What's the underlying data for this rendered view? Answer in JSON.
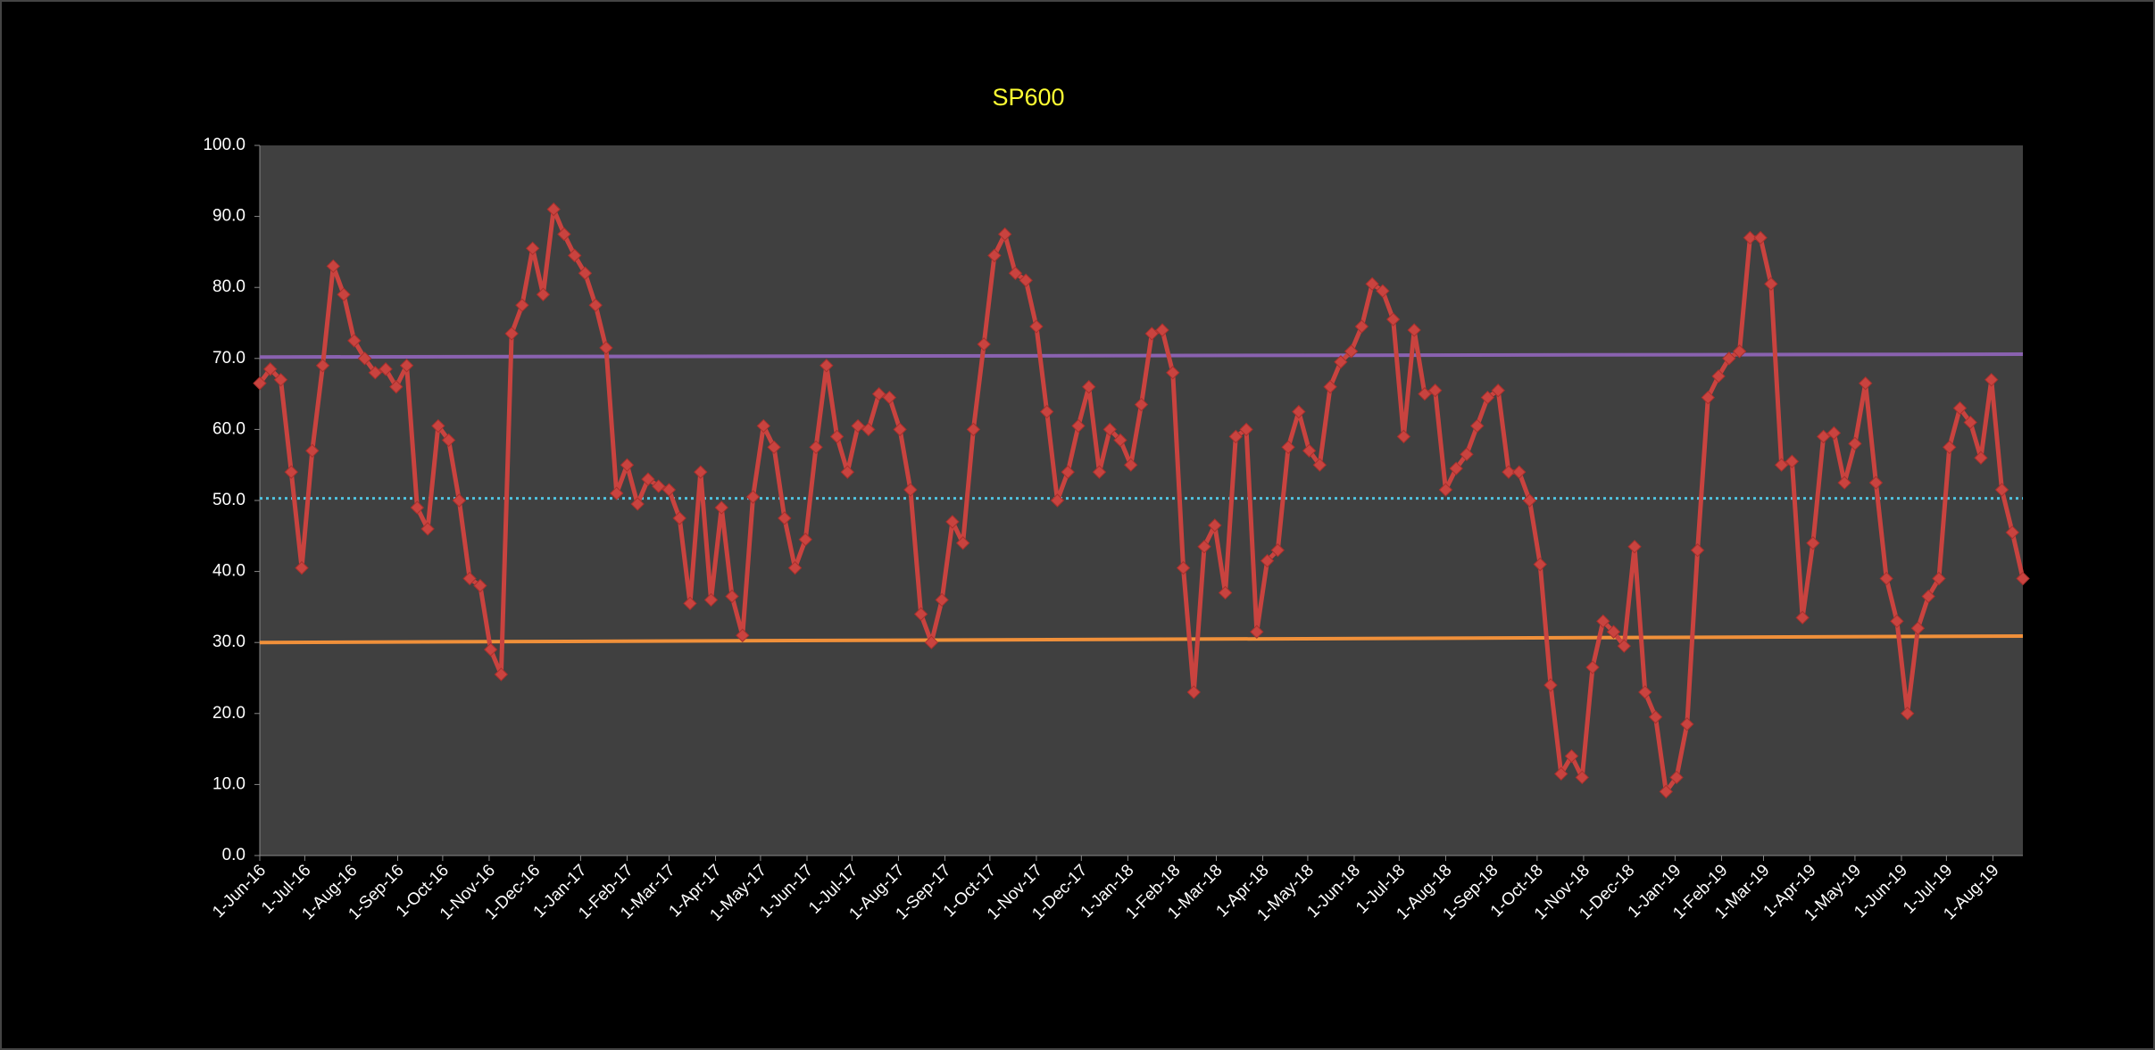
{
  "chart_data": {
    "type": "line",
    "title": "SP600",
    "x": [
      "2016-06-01",
      "2016-06-08",
      "2016-06-15",
      "2016-06-22",
      "2016-06-29",
      "2016-07-06",
      "2016-07-13",
      "2016-07-20",
      "2016-07-27",
      "2016-08-03",
      "2016-08-10",
      "2016-08-17",
      "2016-08-24",
      "2016-08-31",
      "2016-09-07",
      "2016-09-14",
      "2016-09-21",
      "2016-09-28",
      "2016-10-05",
      "2016-10-12",
      "2016-10-19",
      "2016-10-26",
      "2016-11-02",
      "2016-11-09",
      "2016-11-16",
      "2016-11-23",
      "2016-11-30",
      "2016-12-07",
      "2016-12-14",
      "2016-12-21",
      "2016-12-28",
      "2017-01-04",
      "2017-01-11",
      "2017-01-18",
      "2017-01-25",
      "2017-02-01",
      "2017-02-08",
      "2017-02-15",
      "2017-02-22",
      "2017-03-01",
      "2017-03-08",
      "2017-03-15",
      "2017-03-22",
      "2017-03-29",
      "2017-04-05",
      "2017-04-12",
      "2017-04-19",
      "2017-04-26",
      "2017-05-03",
      "2017-05-10",
      "2017-05-17",
      "2017-05-24",
      "2017-05-31",
      "2017-06-07",
      "2017-06-14",
      "2017-06-21",
      "2017-06-28",
      "2017-07-05",
      "2017-07-12",
      "2017-07-19",
      "2017-07-26",
      "2017-08-02",
      "2017-08-09",
      "2017-08-16",
      "2017-08-23",
      "2017-08-30",
      "2017-09-06",
      "2017-09-13",
      "2017-09-20",
      "2017-09-27",
      "2017-10-04",
      "2017-10-11",
      "2017-10-18",
      "2017-10-25",
      "2017-11-01",
      "2017-11-08",
      "2017-11-15",
      "2017-11-22",
      "2017-11-29",
      "2017-12-06",
      "2017-12-13",
      "2017-12-20",
      "2017-12-27",
      "2018-01-03",
      "2018-01-10",
      "2018-01-17",
      "2018-01-24",
      "2018-01-31",
      "2018-02-07",
      "2018-02-14",
      "2018-02-21",
      "2018-02-28",
      "2018-03-07",
      "2018-03-14",
      "2018-03-21",
      "2018-03-28",
      "2018-04-04",
      "2018-04-11",
      "2018-04-18",
      "2018-04-25",
      "2018-05-02",
      "2018-05-09",
      "2018-05-16",
      "2018-05-23",
      "2018-05-30",
      "2018-06-06",
      "2018-06-13",
      "2018-06-20",
      "2018-06-27",
      "2018-07-04",
      "2018-07-11",
      "2018-07-18",
      "2018-07-25",
      "2018-08-01",
      "2018-08-08",
      "2018-08-15",
      "2018-08-22",
      "2018-08-29",
      "2018-09-05",
      "2018-09-12",
      "2018-09-19",
      "2018-09-26",
      "2018-10-03",
      "2018-10-10",
      "2018-10-17",
      "2018-10-24",
      "2018-10-31",
      "2018-11-07",
      "2018-11-14",
      "2018-11-21",
      "2018-11-28",
      "2018-12-05",
      "2018-12-12",
      "2018-12-19",
      "2018-12-26",
      "2019-01-02",
      "2019-01-09",
      "2019-01-16",
      "2019-01-23",
      "2019-01-30",
      "2019-02-06",
      "2019-02-13",
      "2019-02-20",
      "2019-02-27",
      "2019-03-06",
      "2019-03-13",
      "2019-03-20",
      "2019-03-27",
      "2019-04-03",
      "2019-04-10",
      "2019-04-17",
      "2019-04-24",
      "2019-05-01",
      "2019-05-08",
      "2019-05-15",
      "2019-05-22",
      "2019-05-29",
      "2019-06-05",
      "2019-06-12",
      "2019-06-19",
      "2019-06-26",
      "2019-07-03",
      "2019-07-10",
      "2019-07-17",
      "2019-07-24",
      "2019-07-31",
      "2019-08-07",
      "2019-08-14",
      "2019-08-21"
    ],
    "series": [
      {
        "color": "#c9433f",
        "values": [
          66.5,
          68.5,
          67,
          54,
          40.5,
          57,
          69,
          83,
          79,
          72.5,
          70,
          68,
          68.5,
          66,
          69,
          49,
          46,
          60.5,
          58.5,
          50,
          39,
          38,
          29,
          25.5,
          73.5,
          77.5,
          85.5,
          79,
          91,
          87.5,
          84.5,
          82,
          77.5,
          71.5,
          51,
          55,
          49.5,
          53,
          52,
          51.5,
          47.5,
          35.5,
          54,
          36,
          49,
          36.5,
          31,
          50.5,
          60.5,
          57.5,
          47.5,
          40.5,
          44.5,
          57.5,
          69,
          59,
          54,
          60.5,
          60,
          65,
          64.5,
          60,
          51.5,
          34,
          30,
          36,
          47,
          44,
          60,
          72,
          84.5,
          87.5,
          82,
          81,
          74.5,
          62.5,
          50,
          54,
          60.5,
          66,
          54,
          60,
          58.5,
          55,
          63.5,
          73.5,
          74,
          68,
          40.5,
          23,
          43.5,
          46.5,
          37,
          59,
          60,
          31.5,
          41.5,
          43,
          57.5,
          62.5,
          57,
          55,
          66,
          69.5,
          71,
          74.5,
          80.5,
          79.5,
          75.5,
          59,
          74,
          65,
          65.5,
          51.5,
          54.5,
          56.5,
          60.5,
          64.5,
          65.5,
          54,
          54,
          50,
          41,
          24,
          11.5,
          14,
          11,
          26.5,
          33,
          31.5,
          29.5,
          43.5,
          23,
          19.5,
          9,
          11,
          18.5,
          43,
          64.5,
          67.5,
          70,
          71,
          87,
          87,
          80.5,
          55,
          55.5,
          33.5,
          44,
          59,
          59.5,
          52.5,
          58,
          66.5,
          52.5,
          39,
          33,
          20,
          32,
          36.5,
          39,
          57.5,
          63,
          61,
          56,
          67,
          51.5,
          45.5,
          39
        ]
      }
    ],
    "reference_lines": [
      {
        "color": "#8a62b0",
        "values": [
          70.2,
          70.6
        ]
      },
      {
        "color": "#4fc3e0",
        "style": "dotted",
        "values": [
          50.3,
          50.3
        ]
      },
      {
        "color": "#f0903a",
        "values": [
          30.0,
          30.9
        ]
      }
    ],
    "xlim": [
      "2016-06-01",
      "2019-08-21"
    ],
    "xticks": [
      {
        "value": "2016-06-01",
        "label": "1-Jun-16"
      },
      {
        "value": "2016-07-01",
        "label": "1-Jul-16"
      },
      {
        "value": "2016-08-01",
        "label": "1-Aug-16"
      },
      {
        "value": "2016-09-01",
        "label": "1-Sep-16"
      },
      {
        "value": "2016-10-01",
        "label": "1-Oct-16"
      },
      {
        "value": "2016-11-01",
        "label": "1-Nov-16"
      },
      {
        "value": "2016-12-01",
        "label": "1-Dec-16"
      },
      {
        "value": "2017-01-01",
        "label": "1-Jan-17"
      },
      {
        "value": "2017-02-01",
        "label": "1-Feb-17"
      },
      {
        "value": "2017-03-01",
        "label": "1-Mar-17"
      },
      {
        "value": "2017-04-01",
        "label": "1-Apr-17"
      },
      {
        "value": "2017-05-01",
        "label": "1-May-17"
      },
      {
        "value": "2017-06-01",
        "label": "1-Jun-17"
      },
      {
        "value": "2017-07-01",
        "label": "1-Jul-17"
      },
      {
        "value": "2017-08-01",
        "label": "1-Aug-17"
      },
      {
        "value": "2017-09-01",
        "label": "1-Sep-17"
      },
      {
        "value": "2017-10-01",
        "label": "1-Oct-17"
      },
      {
        "value": "2017-11-01",
        "label": "1-Nov-17"
      },
      {
        "value": "2017-12-01",
        "label": "1-Dec-17"
      },
      {
        "value": "2018-01-01",
        "label": "1-Jan-18"
      },
      {
        "value": "2018-02-01",
        "label": "1-Feb-18"
      },
      {
        "value": "2018-03-01",
        "label": "1-Mar-18"
      },
      {
        "value": "2018-04-01",
        "label": "1-Apr-18"
      },
      {
        "value": "2018-05-01",
        "label": "1-May-18"
      },
      {
        "value": "2018-06-01",
        "label": "1-Jun-18"
      },
      {
        "value": "2018-07-01",
        "label": "1-Jul-18"
      },
      {
        "value": "2018-08-01",
        "label": "1-Aug-18"
      },
      {
        "value": "2018-09-01",
        "label": "1-Sep-18"
      },
      {
        "value": "2018-10-01",
        "label": "1-Oct-18"
      },
      {
        "value": "2018-11-01",
        "label": "1-Nov-18"
      },
      {
        "value": "2018-12-01",
        "label": "1-Dec-18"
      },
      {
        "value": "2019-01-01",
        "label": "1-Jan-19"
      },
      {
        "value": "2019-02-01",
        "label": "1-Feb-19"
      },
      {
        "value": "2019-03-01",
        "label": "1-Mar-19"
      },
      {
        "value": "2019-04-01",
        "label": "1-Apr-19"
      },
      {
        "value": "2019-05-01",
        "label": "1-May-19"
      },
      {
        "value": "2019-06-01",
        "label": "1-Jun-19"
      },
      {
        "value": "2019-07-01",
        "label": "1-Jul-19"
      },
      {
        "value": "2019-08-01",
        "label": "1-Aug-19"
      }
    ],
    "ylim": [
      0,
      100
    ],
    "yticks": [
      {
        "value": 0,
        "label": "0.0"
      },
      {
        "value": 10,
        "label": "10.0"
      },
      {
        "value": 20,
        "label": "20.0"
      },
      {
        "value": 30,
        "label": "30.0"
      },
      {
        "value": 40,
        "label": "40.0"
      },
      {
        "value": 50,
        "label": "50.0"
      },
      {
        "value": 60,
        "label": "60.0"
      },
      {
        "value": 70,
        "label": "70.0"
      },
      {
        "value": 80,
        "label": "80.0"
      },
      {
        "value": 90,
        "label": "90.0"
      },
      {
        "value": 100,
        "label": "100.0"
      }
    ],
    "plot_background": "#404040",
    "title_color": "#ffff33"
  }
}
